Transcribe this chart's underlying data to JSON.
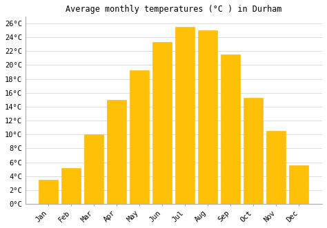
{
  "title": "Average monthly temperatures (°C ) in Durham",
  "months": [
    "Jan",
    "Feb",
    "Mar",
    "Apr",
    "May",
    "Jun",
    "Jul",
    "Aug",
    "Sep",
    "Oct",
    "Nov",
    "Dec"
  ],
  "values": [
    3.5,
    5.2,
    10.0,
    15.0,
    19.3,
    23.3,
    25.5,
    25.0,
    21.5,
    15.3,
    10.5,
    5.6
  ],
  "bar_color": "#FFC107",
  "bar_edge_color": "#FFB300",
  "background_color": "#ffffff",
  "grid_color": "#d8d8d8",
  "ylim": [
    0,
    27
  ],
  "ytick_values": [
    0,
    2,
    4,
    6,
    8,
    10,
    12,
    14,
    16,
    18,
    20,
    22,
    24,
    26
  ],
  "title_fontsize": 8.5,
  "tick_fontsize": 7.5,
  "font_family": "monospace"
}
